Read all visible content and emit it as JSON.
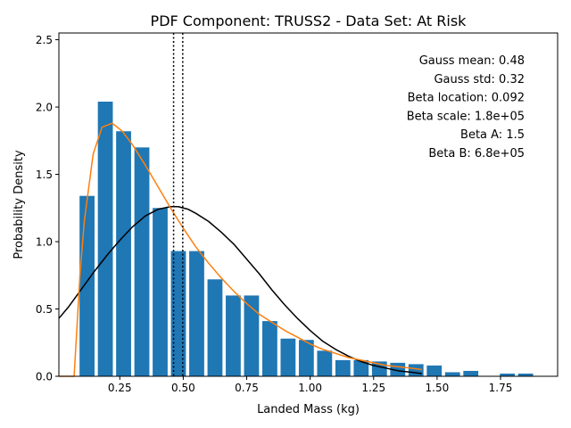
{
  "chart_data": {
    "type": "bar",
    "title": "PDF Component: TRUSS2 - Data Set: At Risk",
    "xlabel": "Landed Mass (kg)",
    "ylabel": "Probability Density",
    "xlim": [
      0.01,
      1.975
    ],
    "ylim": [
      0,
      2.55
    ],
    "xticks": [
      0.25,
      0.5,
      0.75,
      1.0,
      1.25,
      1.5,
      1.75
    ],
    "xtick_labels": [
      "0.25",
      "0.50",
      "0.75",
      "1.00",
      "1.25",
      "1.50",
      "1.75"
    ],
    "yticks": [
      0,
      0.5,
      1.0,
      1.5,
      2.0,
      2.5
    ],
    "ytick_labels": [
      "0.0",
      "0.5",
      "1.0",
      "1.5",
      "2.0",
      "2.5"
    ],
    "grid": false,
    "bar_width": 0.059,
    "bar_color": "#1f77b4",
    "bars": {
      "x": [
        0.121,
        0.193,
        0.265,
        0.337,
        0.409,
        0.481,
        0.553,
        0.625,
        0.697,
        0.769,
        0.841,
        0.913,
        0.985,
        1.057,
        1.129,
        1.201,
        1.273,
        1.345,
        1.417,
        1.489,
        1.561,
        1.633,
        1.705,
        1.777,
        1.849
      ],
      "values": [
        1.34,
        2.04,
        1.82,
        1.7,
        1.25,
        0.93,
        0.93,
        0.72,
        0.6,
        0.6,
        0.41,
        0.28,
        0.27,
        0.19,
        0.12,
        0.12,
        0.11,
        0.1,
        0.09,
        0.08,
        0.03,
        0.04,
        0.0,
        0.02,
        0.02
      ]
    },
    "lines": [
      {
        "label": "gauss",
        "color": "#000000",
        "x": [
          0.01,
          0.05,
          0.1,
          0.15,
          0.2,
          0.25,
          0.3,
          0.35,
          0.4,
          0.45,
          0.48,
          0.52,
          0.55,
          0.6,
          0.65,
          0.7,
          0.75,
          0.8,
          0.85,
          0.9,
          0.95,
          1.0,
          1.05,
          1.1,
          1.15,
          1.2,
          1.25,
          1.3,
          1.35,
          1.4,
          1.44
        ],
        "y": [
          0.43,
          0.52,
          0.65,
          0.78,
          0.9,
          1.01,
          1.11,
          1.19,
          1.24,
          1.26,
          1.26,
          1.24,
          1.21,
          1.15,
          1.07,
          0.98,
          0.87,
          0.76,
          0.64,
          0.53,
          0.43,
          0.34,
          0.26,
          0.2,
          0.15,
          0.11,
          0.08,
          0.06,
          0.04,
          0.03,
          0.02
        ]
      },
      {
        "label": "beta",
        "color": "#ff7f0e",
        "x": [
          0.01,
          0.07,
          0.093,
          0.11,
          0.145,
          0.18,
          0.22,
          0.26,
          0.3,
          0.35,
          0.4,
          0.45,
          0.5,
          0.55,
          0.6,
          0.65,
          0.7,
          0.75,
          0.8,
          0.85,
          0.9,
          0.95,
          1.0,
          1.05,
          1.1,
          1.15,
          1.2,
          1.25,
          1.3,
          1.35,
          1.4,
          1.44
        ],
        "y": [
          0.0,
          0.0,
          0.75,
          1.15,
          1.65,
          1.85,
          1.88,
          1.82,
          1.72,
          1.57,
          1.41,
          1.25,
          1.1,
          0.96,
          0.84,
          0.73,
          0.63,
          0.54,
          0.46,
          0.4,
          0.34,
          0.29,
          0.24,
          0.2,
          0.17,
          0.14,
          0.12,
          0.1,
          0.08,
          0.07,
          0.06,
          0.05
        ]
      }
    ],
    "vlines": [
      0.462,
      0.498
    ],
    "annotations": [
      "Gauss mean: 0.48",
      "Gauss std: 0.32",
      "Beta location: 0.092",
      "Beta scale: 1.8e+05",
      "Beta A: 1.5",
      "Beta B: 6.8e+05"
    ]
  }
}
